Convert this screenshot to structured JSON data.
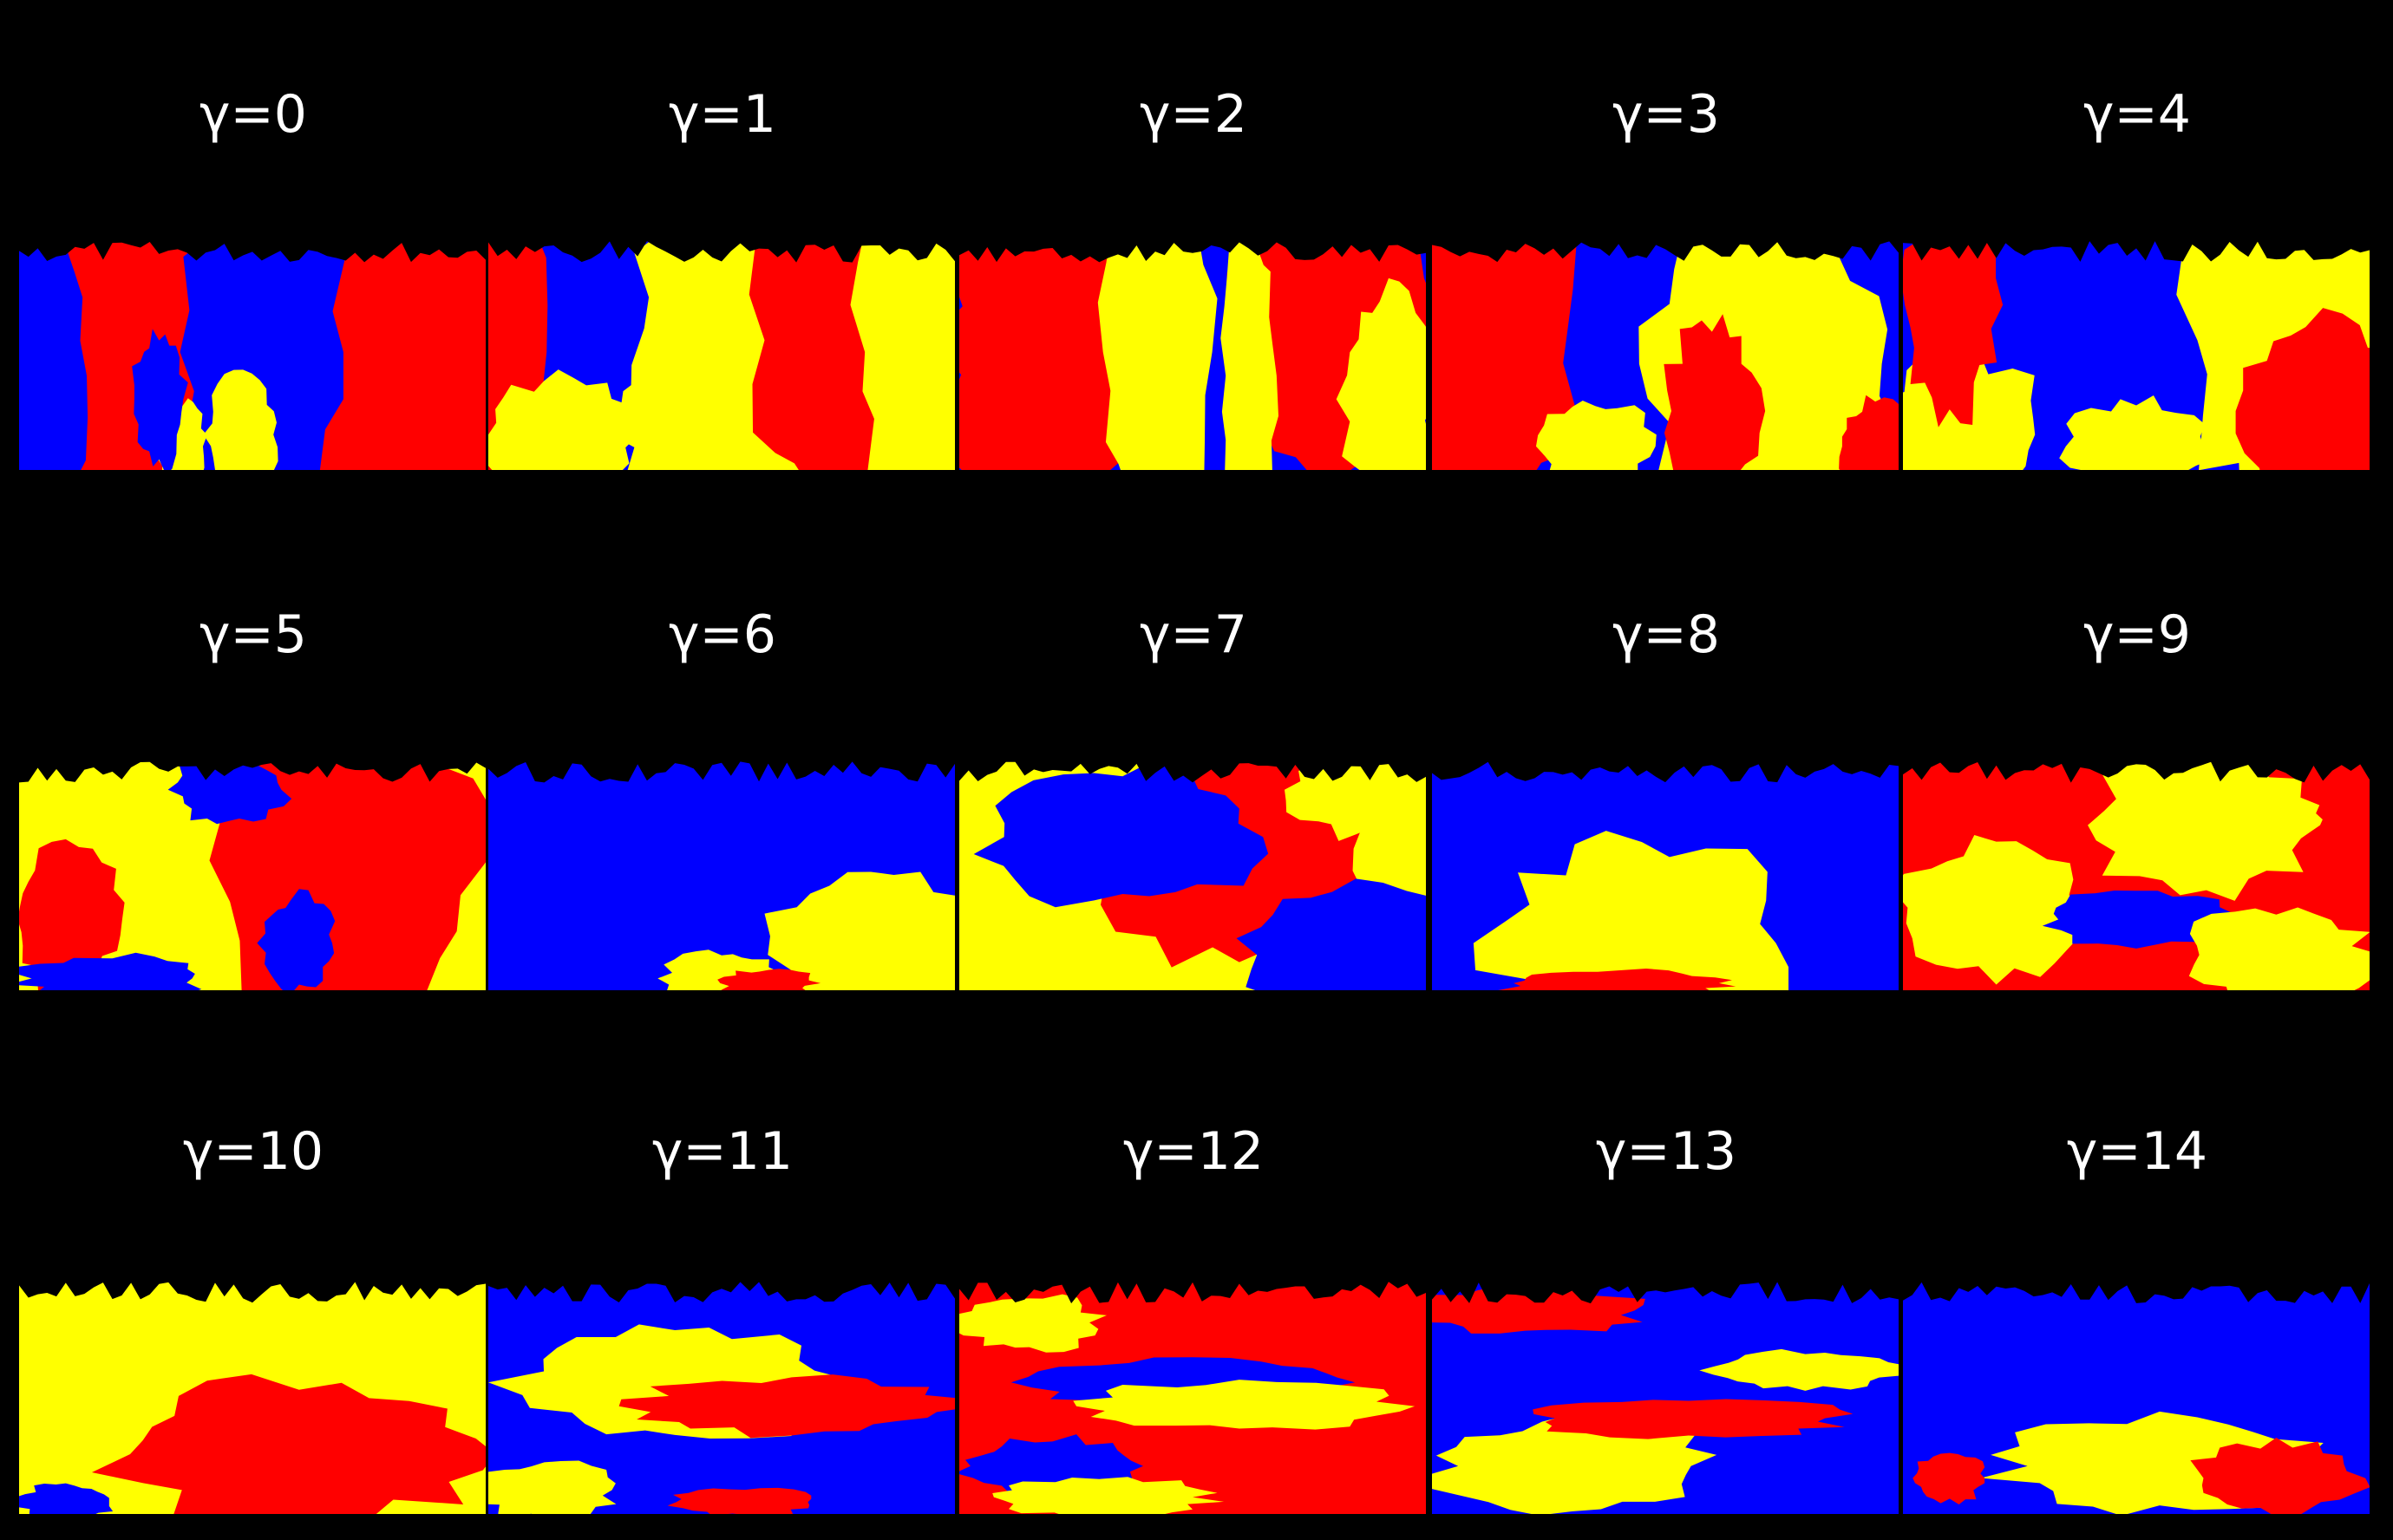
{
  "colors": {
    "background": "#000000",
    "red": "#ff0000",
    "blue": "#0000ff",
    "yellow": "#ffff00"
  },
  "panels": [
    {
      "label": "γ=0",
      "base": "red",
      "blobs": [
        [
          "blue",
          0.52,
          0.5,
          0.18,
          0.9
        ],
        [
          "blue",
          0.05,
          0.6,
          0.1,
          0.8
        ],
        [
          "yellow",
          0.48,
          0.85,
          0.08,
          0.25
        ],
        [
          "yellow",
          0.35,
          0.9,
          0.05,
          0.2
        ],
        [
          "blue",
          0.3,
          0.7,
          0.06,
          0.3
        ]
      ]
    },
    {
      "label": "γ=1",
      "base": "blue",
      "blobs": [
        [
          "yellow",
          0.55,
          0.4,
          0.25,
          0.7
        ],
        [
          "red",
          0.75,
          0.45,
          0.18,
          0.8
        ],
        [
          "yellow",
          0.93,
          0.5,
          0.14,
          0.8
        ],
        [
          "red",
          0.05,
          0.5,
          0.08,
          0.9
        ],
        [
          "yellow",
          0.15,
          0.85,
          0.15,
          0.25
        ],
        [
          "yellow",
          0.4,
          0.8,
          0.12,
          0.3
        ]
      ]
    },
    {
      "label": "γ=2",
      "base": "blue",
      "blobs": [
        [
          "red",
          0.18,
          0.45,
          0.22,
          0.8
        ],
        [
          "yellow",
          0.42,
          0.5,
          0.12,
          0.9
        ],
        [
          "red",
          0.8,
          0.35,
          0.22,
          0.8
        ],
        [
          "yellow",
          0.62,
          0.6,
          0.06,
          0.7
        ],
        [
          "yellow",
          0.92,
          0.7,
          0.1,
          0.5
        ],
        [
          "red",
          0.08,
          0.9,
          0.08,
          0.2
        ]
      ]
    },
    {
      "label": "γ=3",
      "base": "blue",
      "blobs": [
        [
          "red",
          0.12,
          0.4,
          0.2,
          0.8
        ],
        [
          "yellow",
          0.72,
          0.55,
          0.28,
          0.7
        ],
        [
          "red",
          0.6,
          0.75,
          0.1,
          0.4
        ],
        [
          "yellow",
          0.35,
          0.9,
          0.12,
          0.2
        ],
        [
          "red",
          0.95,
          0.9,
          0.08,
          0.2
        ]
      ]
    },
    {
      "label": "γ=4",
      "base": "blue",
      "blobs": [
        [
          "yellow",
          0.85,
          0.45,
          0.25,
          0.8
        ],
        [
          "red",
          0.9,
          0.75,
          0.18,
          0.4
        ],
        [
          "yellow",
          0.12,
          0.85,
          0.18,
          0.35
        ],
        [
          "red",
          0.1,
          0.3,
          0.1,
          0.5
        ],
        [
          "yellow",
          0.5,
          0.9,
          0.15,
          0.2
        ]
      ]
    },
    {
      "label": "γ=5",
      "base": "yellow",
      "blobs": [
        [
          "red",
          0.72,
          0.45,
          0.28,
          0.8
        ],
        [
          "blue",
          0.45,
          0.15,
          0.12,
          0.15
        ],
        [
          "red",
          0.1,
          0.7,
          0.12,
          0.3
        ],
        [
          "blue",
          0.2,
          0.95,
          0.2,
          0.1
        ],
        [
          "blue",
          0.6,
          0.8,
          0.08,
          0.2
        ]
      ]
    },
    {
      "label": "γ=6",
      "base": "blue",
      "blobs": [
        [
          "yellow",
          0.82,
          0.85,
          0.22,
          0.35
        ],
        [
          "yellow",
          0.5,
          0.95,
          0.12,
          0.12
        ],
        [
          "red",
          0.6,
          0.97,
          0.1,
          0.06
        ]
      ]
    },
    {
      "label": "γ=7",
      "base": "yellow",
      "blobs": [
        [
          "red",
          0.6,
          0.4,
          0.3,
          0.5
        ],
        [
          "blue",
          0.35,
          0.35,
          0.3,
          0.3
        ],
        [
          "blue",
          0.85,
          0.85,
          0.25,
          0.3
        ],
        [
          "yellow",
          0.85,
          0.15,
          0.15,
          0.2
        ]
      ]
    },
    {
      "label": "γ=8",
      "base": "blue",
      "blobs": [
        [
          "yellow",
          0.45,
          0.8,
          0.32,
          0.45
        ],
        [
          "red",
          0.4,
          0.97,
          0.25,
          0.06
        ]
      ]
    },
    {
      "label": "γ=9",
      "base": "red",
      "blobs": [
        [
          "yellow",
          0.65,
          0.3,
          0.25,
          0.3
        ],
        [
          "yellow",
          0.2,
          0.65,
          0.2,
          0.3
        ],
        [
          "blue",
          0.5,
          0.7,
          0.2,
          0.12
        ],
        [
          "yellow",
          0.8,
          0.85,
          0.2,
          0.2
        ],
        [
          "red",
          0.95,
          0.2,
          0.06,
          0.2
        ]
      ]
    },
    {
      "label": "γ=10",
      "base": "yellow",
      "blobs": [
        [
          "red",
          0.6,
          0.75,
          0.4,
          0.3
        ],
        [
          "blue",
          0.1,
          0.95,
          0.1,
          0.08
        ]
      ]
    },
    {
      "label": "γ=11",
      "base": "blue",
      "blobs": [
        [
          "yellow",
          0.4,
          0.45,
          0.35,
          0.25
        ],
        [
          "red",
          0.65,
          0.55,
          0.35,
          0.12
        ],
        [
          "yellow",
          0.12,
          0.9,
          0.15,
          0.12
        ],
        [
          "red",
          0.55,
          0.95,
          0.15,
          0.06
        ]
      ]
    },
    {
      "label": "γ=12",
      "base": "red",
      "blobs": [
        [
          "yellow",
          0.15,
          0.2,
          0.15,
          0.12
        ],
        [
          "blue",
          0.5,
          0.45,
          0.35,
          0.1
        ],
        [
          "yellow",
          0.6,
          0.55,
          0.35,
          0.1
        ],
        [
          "blue",
          0.2,
          0.8,
          0.2,
          0.12
        ],
        [
          "yellow",
          0.3,
          0.93,
          0.25,
          0.08
        ]
      ]
    },
    {
      "label": "γ=13",
      "base": "blue",
      "blobs": [
        [
          "red",
          0.2,
          0.15,
          0.25,
          0.1
        ],
        [
          "yellow",
          0.3,
          0.8,
          0.3,
          0.2
        ],
        [
          "red",
          0.55,
          0.6,
          0.35,
          0.08
        ],
        [
          "yellow",
          0.8,
          0.4,
          0.2,
          0.08
        ]
      ]
    },
    {
      "label": "γ=14",
      "base": "blue",
      "blobs": [
        [
          "yellow",
          0.55,
          0.8,
          0.35,
          0.2
        ],
        [
          "red",
          0.8,
          0.85,
          0.18,
          0.15
        ],
        [
          "red",
          0.1,
          0.85,
          0.08,
          0.1
        ]
      ]
    }
  ]
}
